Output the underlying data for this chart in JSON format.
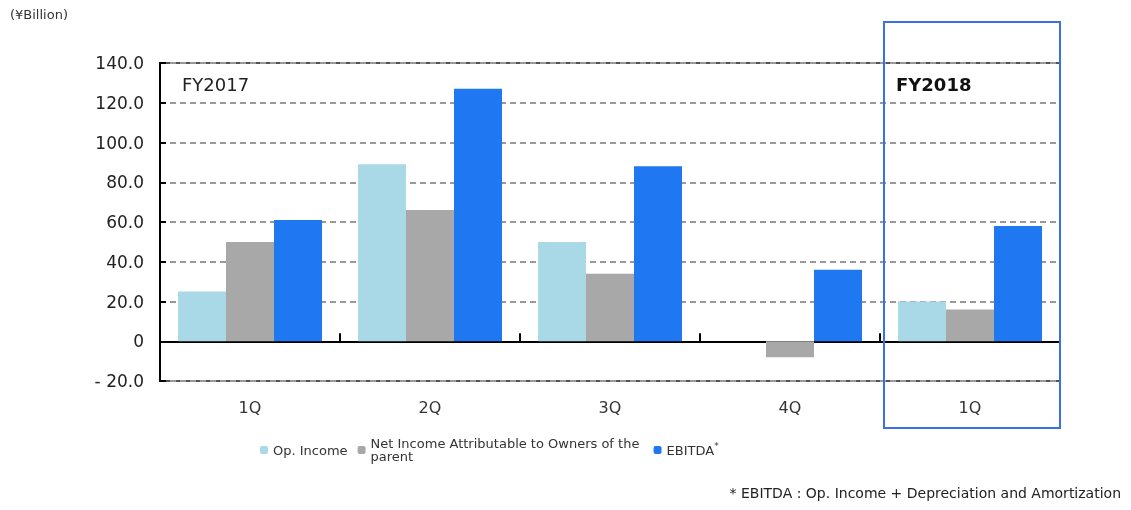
{
  "chart_data": {
    "type": "bar",
    "ylabel": "(¥Billion)",
    "categories": [
      "1Q",
      "2Q",
      "3Q",
      "4Q",
      "1Q"
    ],
    "series": [
      {
        "name": "Op. Income",
        "color": "#a9d8e6",
        "values": [
          25,
          89,
          50,
          null,
          20
        ]
      },
      {
        "name": "Net Income Attributable to Owners of the parent",
        "color": "#a8a8a8",
        "values": [
          50,
          66,
          34,
          -8,
          16
        ]
      },
      {
        "name": "EBITDA$^{*}$",
        "color": "#1f78f2",
        "values": [
          61,
          127,
          88,
          36,
          58
        ]
      }
    ],
    "ylim": [
      -20,
      140
    ],
    "yticks": [
      {
        "value": -20,
        "label": "- 20.0"
      },
      {
        "value": 0,
        "label": "0"
      },
      {
        "value": 20,
        "label": "20.0"
      },
      {
        "value": 40,
        "label": "40.0"
      },
      {
        "value": 60,
        "label": "60.0"
      },
      {
        "value": 80,
        "label": "80.0"
      },
      {
        "value": 100,
        "label": "100.0"
      },
      {
        "value": 120,
        "label": "120.0"
      },
      {
        "value": 140,
        "label": "140.0"
      }
    ],
    "grid": "y",
    "legend": "bottom",
    "annotations": [
      "FY2017",
      "FY2018",
      "* EBITDA : Op. Income + Depreciation and Amortization"
    ]
  }
}
